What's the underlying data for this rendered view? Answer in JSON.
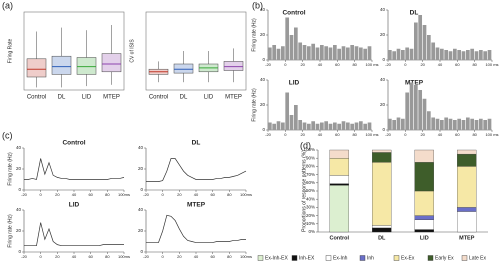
{
  "chart_data": [
    {
      "type": "box",
      "label": "(a)",
      "y_label": "Firing Rate",
      "categories": [
        "Control",
        "DL",
        "LID",
        "MTEP"
      ],
      "ylim": [
        0,
        60
      ],
      "boxes": [
        {
          "color": "#c0392b",
          "whislo": 2,
          "q1": 10,
          "med": 16,
          "q3": 24,
          "whishi": 45
        },
        {
          "color": "#2e5fb8",
          "whislo": 2,
          "q1": 12,
          "med": 18,
          "q3": 26,
          "whishi": 48
        },
        {
          "color": "#3aa83a",
          "whislo": 3,
          "q1": 12,
          "med": 18,
          "q3": 25,
          "whishi": 46
        },
        {
          "color": "#8e44ad",
          "whislo": 4,
          "q1": 14,
          "med": 20,
          "q3": 28,
          "whishi": 50
        }
      ]
    },
    {
      "type": "box",
      "y_label": "CV of ISIS",
      "categories": [
        "Control",
        "DL",
        "LID",
        "MTEP"
      ],
      "ylim": [
        0,
        3
      ],
      "boxes": [
        {
          "color": "#c0392b",
          "whislo": 0.3,
          "q1": 0.6,
          "med": 0.7,
          "q3": 0.8,
          "whishi": 1.1
        },
        {
          "color": "#2e5fb8",
          "whislo": 0.3,
          "q1": 0.65,
          "med": 0.8,
          "q3": 1.0,
          "whishi": 1.5
        },
        {
          "color": "#3aa83a",
          "whislo": 0.3,
          "q1": 0.7,
          "med": 0.85,
          "q3": 1.0,
          "whishi": 1.5
        },
        {
          "color": "#8e44ad",
          "whislo": 0.3,
          "q1": 0.75,
          "med": 0.9,
          "q3": 1.1,
          "whishi": 1.6
        }
      ]
    },
    {
      "type": "histogram",
      "label": "(b)",
      "title": "Control",
      "y_label": "Firing rate (Hz)",
      "color": "#999999",
      "ylim": [
        0,
        40
      ],
      "yticks": [
        0,
        20,
        40
      ],
      "xlim": [
        -20,
        100
      ],
      "xticks": [
        -20,
        0,
        20,
        40,
        60,
        80,
        {
          "value": 100,
          "label": "100 ms"
        }
      ],
      "bins": [
        -20,
        -15,
        -10,
        -5,
        0,
        5,
        10,
        15,
        20,
        25,
        30,
        35,
        40,
        45,
        50,
        55,
        60,
        65,
        70,
        75,
        80,
        85,
        90,
        95,
        100
      ],
      "values": [
        10,
        12,
        9,
        11,
        34,
        20,
        26,
        14,
        12,
        11,
        13,
        10,
        12,
        11,
        10,
        12,
        9,
        11,
        10,
        12,
        11,
        10,
        9,
        11
      ]
    },
    {
      "type": "histogram",
      "title": "DL",
      "color": "#999999",
      "ylim": [
        0,
        40
      ],
      "yticks": [
        0,
        20,
        40
      ],
      "xlim": [
        -20,
        100
      ],
      "xticks": [
        -20,
        0,
        20,
        40,
        60,
        80,
        {
          "value": 100,
          "label": "100 ms"
        }
      ],
      "bins": [
        -20,
        -15,
        -10,
        -5,
        0,
        5,
        10,
        15,
        20,
        25,
        30,
        35,
        40,
        45,
        50,
        55,
        60,
        65,
        70,
        75,
        80,
        85,
        90,
        95,
        100
      ],
      "values": [
        8,
        7,
        9,
        8,
        10,
        9,
        30,
        36,
        28,
        20,
        14,
        10,
        9,
        8,
        7,
        9,
        8,
        7,
        8,
        9,
        7,
        8,
        7,
        8
      ]
    },
    {
      "type": "histogram",
      "title": "LID",
      "y_label": "Firing rate (Hz)",
      "color": "#999999",
      "ylim": [
        0,
        40
      ],
      "yticks": [
        0,
        20,
        40
      ],
      "xlim": [
        -20,
        100
      ],
      "xticks": [
        -20,
        0,
        20,
        40,
        60,
        80,
        {
          "value": 100,
          "label": "100 ms"
        }
      ],
      "bins": [
        -20,
        -15,
        -10,
        -5,
        0,
        5,
        10,
        15,
        20,
        25,
        30,
        35,
        40,
        45,
        50,
        55,
        60,
        65,
        70,
        75,
        80,
        85,
        90,
        95,
        100
      ],
      "values": [
        6,
        5,
        7,
        6,
        30,
        12,
        20,
        8,
        6,
        5,
        7,
        5,
        6,
        7,
        5,
        6,
        5,
        7,
        6,
        5,
        6,
        7,
        5,
        6
      ]
    },
    {
      "type": "histogram",
      "title": "MTEP",
      "color": "#999999",
      "ylim": [
        0,
        40
      ],
      "yticks": [
        0,
        20,
        40
      ],
      "xlim": [
        -20,
        100
      ],
      "xticks": [
        -20,
        0,
        20,
        40,
        60,
        80,
        {
          "value": 100,
          "label": "100 ms"
        }
      ],
      "bins": [
        -20,
        -15,
        -10,
        -5,
        0,
        5,
        10,
        15,
        20,
        25,
        30,
        35,
        40,
        45,
        50,
        55,
        60,
        65,
        70,
        75,
        80,
        85,
        90,
        95,
        100
      ],
      "values": [
        9,
        8,
        10,
        9,
        30,
        38,
        36,
        32,
        25,
        15,
        10,
        9,
        8,
        10,
        9,
        8,
        9,
        8,
        10,
        9,
        8,
        9,
        8,
        9
      ]
    },
    {
      "type": "line",
      "label": "(c)",
      "title": "Control",
      "y_label": "Firing rate (Hz)",
      "color": "#333333",
      "ylim": [
        0,
        40
      ],
      "yticks": [
        0,
        20,
        40
      ],
      "xlim": [
        -20,
        100
      ],
      "xticks": [
        -20,
        0,
        20,
        40,
        60,
        80,
        {
          "value": 100,
          "label": "100ms"
        }
      ],
      "x": [
        -20,
        -15,
        -10,
        -5,
        0,
        5,
        10,
        15,
        20,
        25,
        30,
        35,
        40,
        45,
        50,
        55,
        60,
        65,
        70,
        75,
        80,
        85,
        90,
        95,
        100
      ],
      "values": [
        10,
        10,
        11,
        10,
        30,
        15,
        26,
        14,
        12,
        11,
        11,
        10,
        10,
        10,
        10,
        10,
        10,
        10,
        10,
        10,
        10,
        11,
        11,
        11,
        12
      ]
    },
    {
      "type": "line",
      "title": "DL",
      "color": "#333333",
      "ylim": [
        0,
        40
      ],
      "yticks": [
        0,
        20,
        40
      ],
      "xlim": [
        -20,
        100
      ],
      "xticks": [
        -20,
        0,
        20,
        40,
        60,
        80,
        {
          "value": 100,
          "label": "100ms"
        }
      ],
      "x": [
        -20,
        -15,
        -10,
        -5,
        0,
        5,
        10,
        15,
        20,
        25,
        30,
        35,
        40,
        45,
        50,
        55,
        60,
        65,
        70,
        75,
        80,
        85,
        90,
        95,
        100
      ],
      "values": [
        8,
        8,
        8,
        8,
        9,
        18,
        30,
        30,
        24,
        18,
        14,
        12,
        10,
        10,
        10,
        10,
        10,
        11,
        11,
        12,
        12,
        13,
        14,
        16,
        18
      ]
    },
    {
      "type": "line",
      "title": "LID",
      "y_label": "Firing rate (Hz)",
      "color": "#333333",
      "ylim": [
        0,
        40
      ],
      "yticks": [
        0,
        20,
        40
      ],
      "xlim": [
        -20,
        100
      ],
      "xticks": [
        -20,
        0,
        20,
        40,
        60,
        80,
        {
          "value": 100,
          "label": "100ms"
        }
      ],
      "x": [
        -20,
        -15,
        -10,
        -5,
        0,
        5,
        10,
        15,
        20,
        25,
        30,
        35,
        40,
        45,
        50,
        55,
        60,
        65,
        70,
        75,
        80,
        85,
        90,
        95,
        100
      ],
      "values": [
        6,
        6,
        6,
        6,
        28,
        12,
        22,
        10,
        7,
        6,
        6,
        6,
        6,
        6,
        6,
        6,
        6,
        6,
        6,
        7,
        7,
        7,
        7,
        7,
        7
      ]
    },
    {
      "type": "line",
      "title": "MTEP",
      "color": "#333333",
      "ylim": [
        0,
        40
      ],
      "yticks": [
        0,
        20,
        40
      ],
      "xlim": [
        -20,
        100
      ],
      "xticks": [
        -20,
        0,
        20,
        40,
        60,
        80,
        {
          "value": 100,
          "label": "100ms"
        }
      ],
      "x": [
        -20,
        -15,
        -10,
        -5,
        0,
        5,
        10,
        15,
        20,
        25,
        30,
        35,
        40,
        45,
        50,
        55,
        60,
        65,
        70,
        75,
        80,
        85,
        90,
        95,
        100
      ],
      "values": [
        9,
        9,
        9,
        9,
        20,
        35,
        34,
        30,
        22,
        15,
        11,
        10,
        9,
        9,
        9,
        9,
        9,
        10,
        10,
        10,
        10,
        11,
        11,
        12,
        12
      ]
    },
    {
      "type": "stacked_bar",
      "label": "(d)",
      "y_label": "Proportions of response patterns (%)",
      "categories": [
        "Control",
        "DL",
        "LID",
        "MTEP"
      ],
      "ylim": [
        0,
        100
      ],
      "yticks": [
        {
          "value": 0,
          "label": "0%"
        },
        {
          "value": 10,
          "label": "10%"
        },
        {
          "value": 20,
          "label": "20%"
        },
        {
          "value": 30,
          "label": "30%"
        },
        {
          "value": 40,
          "label": "40%"
        },
        {
          "value": 50,
          "label": "50%"
        },
        {
          "value": 60,
          "label": "60%"
        },
        {
          "value": 70,
          "label": "70%"
        },
        {
          "value": 80,
          "label": "80%"
        },
        {
          "value": 90,
          "label": "90%"
        },
        {
          "value": 100,
          "label": "100%"
        }
      ],
      "series": [
        {
          "name": "Ex-Inh-EX",
          "color": "#dcefd0",
          "values": [
            57,
            0,
            0,
            0
          ]
        },
        {
          "name": "Inh-EX",
          "color": "#111111",
          "values": [
            2,
            5,
            3,
            0
          ]
        },
        {
          "name": "Ex-Inh",
          "color": "#ffffff",
          "values": [
            10,
            3,
            12,
            25
          ]
        },
        {
          "name": "Inh",
          "color": "#6a6fc8",
          "values": [
            0,
            0,
            5,
            5
          ]
        },
        {
          "name": "Ex-Ex",
          "color": "#f6e8a6",
          "values": [
            21,
            77,
            30,
            50
          ]
        },
        {
          "name": "Early Ex",
          "color": "#3e5d2a",
          "values": [
            0,
            12,
            35,
            15
          ]
        },
        {
          "name": "Late Ex",
          "color": "#f4dccb",
          "values": [
            10,
            3,
            15,
            5
          ]
        }
      ]
    }
  ]
}
